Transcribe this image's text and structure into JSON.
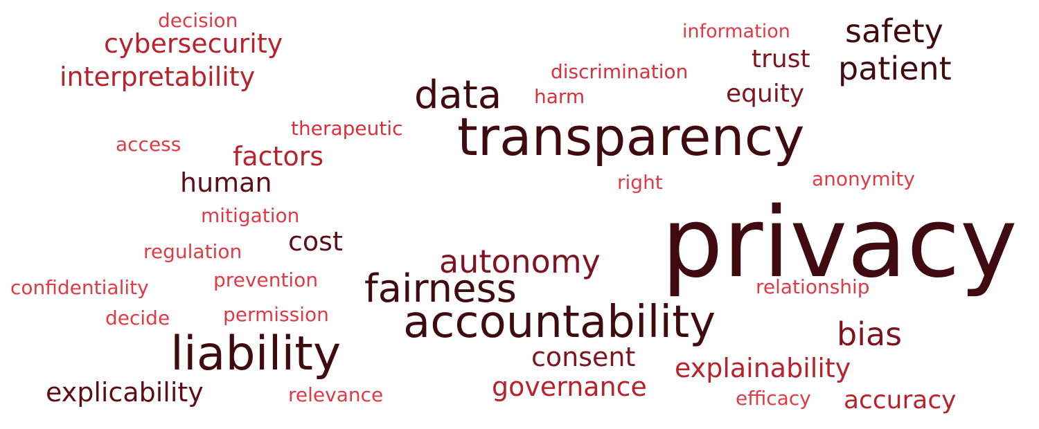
{
  "words": [
    {
      "text": "decision",
      "color": "#e23a45"
    },
    {
      "text": "cybersecurity",
      "color": "#b8222d"
    },
    {
      "text": "interpretability",
      "color": "#b8222d"
    },
    {
      "text": "information",
      "color": "#e23a45"
    },
    {
      "text": "safety",
      "color": "#3f0a10"
    },
    {
      "text": "trust",
      "color": "#7d1420"
    },
    {
      "text": "patient",
      "color": "#3f0a10"
    },
    {
      "text": "discrimination",
      "color": "#d9303c"
    },
    {
      "text": "data",
      "color": "#3f0a10"
    },
    {
      "text": "harm",
      "color": "#d9303c"
    },
    {
      "text": "equity",
      "color": "#7d1420"
    },
    {
      "text": "therapeutic",
      "color": "#d9303c"
    },
    {
      "text": "transparency",
      "color": "#3f0a10"
    },
    {
      "text": "access",
      "color": "#e23a45"
    },
    {
      "text": "factors",
      "color": "#b8222d"
    },
    {
      "text": "human",
      "color": "#5e0d16"
    },
    {
      "text": "right",
      "color": "#e23a45"
    },
    {
      "text": "anonymity",
      "color": "#e23a45"
    },
    {
      "text": "mitigation",
      "color": "#e23a45"
    },
    {
      "text": "privacy",
      "color": "#3f0a10"
    },
    {
      "text": "cost",
      "color": "#5e0d16"
    },
    {
      "text": "regulation",
      "color": "#e23a45"
    },
    {
      "text": "autonomy",
      "color": "#7d1420"
    },
    {
      "text": "confidentiality",
      "color": "#e23a45"
    },
    {
      "text": "prevention",
      "color": "#e23a45"
    },
    {
      "text": "fairness",
      "color": "#3f0a10"
    },
    {
      "text": "relationship",
      "color": "#e23a45"
    },
    {
      "text": "decide",
      "color": "#e23a45"
    },
    {
      "text": "permission",
      "color": "#e23a45"
    },
    {
      "text": "accountability",
      "color": "#3f0a10"
    },
    {
      "text": "bias",
      "color": "#7d1420"
    },
    {
      "text": "liability",
      "color": "#3f0a10"
    },
    {
      "text": "consent",
      "color": "#7d1420"
    },
    {
      "text": "explainability",
      "color": "#b8222d"
    },
    {
      "text": "governance",
      "color": "#b8222d"
    },
    {
      "text": "explicability",
      "color": "#5e0d16"
    },
    {
      "text": "relevance",
      "color": "#e23a45"
    },
    {
      "text": "efficacy",
      "color": "#e23a45"
    },
    {
      "text": "accuracy",
      "color": "#b8222d"
    }
  ]
}
